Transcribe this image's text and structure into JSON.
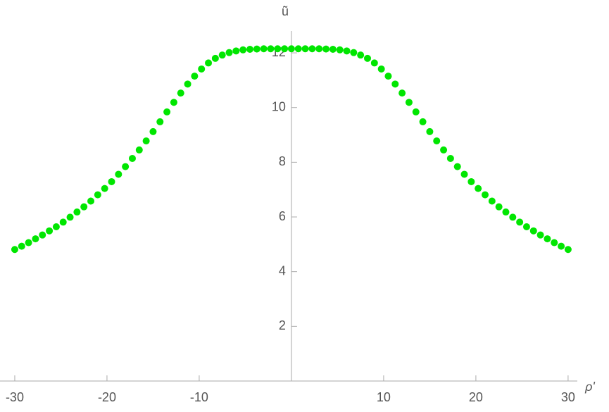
{
  "chart_data": {
    "type": "scatter",
    "x_label": "ρ'",
    "y_label": "ũ",
    "color": "#00e600",
    "x": [
      -30,
      -29.25,
      -28.5,
      -27.75,
      -27,
      -26.25,
      -25.5,
      -24.75,
      -24,
      -23.25,
      -22.5,
      -21.75,
      -21,
      -20.25,
      -19.5,
      -18.75,
      -18,
      -17.25,
      -16.5,
      -15.75,
      -15,
      -14.25,
      -13.5,
      -12.75,
      -12,
      -11.25,
      -10.5,
      -9.75,
      -9,
      -8.25,
      -7.5,
      -6.75,
      -6,
      -5.25,
      -4.5,
      -3.75,
      -3,
      -2.25,
      -1.5,
      -0.75,
      0,
      0.75,
      1.5,
      2.25,
      3,
      3.75,
      4.5,
      5.25,
      6,
      6.75,
      7.5,
      8.25,
      9,
      9.75,
      10.5,
      11.25,
      12,
      12.75,
      13.5,
      14.25,
      15,
      15.75,
      16.5,
      17.25,
      18,
      18.75,
      19.5,
      20.25,
      21,
      21.75,
      22.5,
      23.25,
      24,
      24.75,
      25.5,
      26.25,
      27,
      27.75,
      28.5,
      29.25,
      30
    ],
    "values": [
      4.81,
      4.93,
      5.06,
      5.2,
      5.34,
      5.49,
      5.64,
      5.81,
      5.99,
      6.18,
      6.37,
      6.58,
      6.81,
      7.04,
      7.29,
      7.56,
      7.84,
      8.14,
      8.45,
      8.78,
      9.12,
      9.48,
      9.84,
      10.19,
      10.53,
      10.86,
      11.15,
      11.41,
      11.63,
      11.8,
      11.92,
      12.01,
      12.07,
      12.11,
      12.13,
      12.14,
      12.15,
      12.15,
      12.15,
      12.15,
      12.15,
      12.15,
      12.15,
      12.15,
      12.15,
      12.14,
      12.13,
      12.11,
      12.07,
      12.01,
      11.92,
      11.8,
      11.63,
      11.41,
      11.15,
      10.86,
      10.53,
      10.19,
      9.84,
      9.48,
      9.12,
      8.78,
      8.45,
      8.14,
      7.84,
      7.56,
      7.29,
      7.04,
      6.81,
      6.58,
      6.37,
      6.18,
      5.99,
      5.81,
      5.64,
      5.49,
      5.34,
      5.2,
      5.06,
      4.93,
      4.81
    ],
    "xlim": [
      -31.6,
      31
    ],
    "ylim": [
      0,
      12.8
    ],
    "xticks": [
      -30,
      -20,
      -10,
      10,
      20,
      30
    ],
    "yticks": [
      2,
      4,
      6,
      8,
      10,
      12
    ]
  }
}
